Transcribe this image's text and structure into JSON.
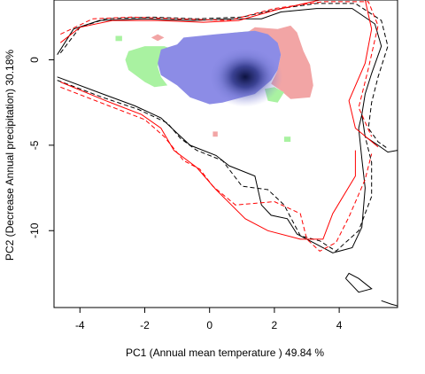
{
  "chart_data": {
    "type": "contour-density",
    "xlabel": "PC1 (Annual mean temperature ) 49.84 %",
    "ylabel": "PC2 (Decrease Annual precipitation) 30.18%",
    "xlim": [
      -4.8,
      5.8
    ],
    "ylim": [
      -14.5,
      3.5
    ],
    "x_ticks": [
      -4,
      -2,
      0,
      2,
      4
    ],
    "y_ticks": [
      0,
      -5,
      -10
    ],
    "x_tick_labels": [
      "-4",
      "-2",
      "0",
      "2",
      "4"
    ],
    "y_tick_labels": [
      "0",
      "-5",
      "-10"
    ],
    "grid": false,
    "colors": {
      "overlap": "#8c8ce6",
      "density_core": "#12184f",
      "species_a_only": "#f2a5a5",
      "species_b_only": "#a9f2a1",
      "contour_red": "#ff0000",
      "contour_black": "#000000"
    },
    "overlap_region": [
      [
        -1.6,
        -0.2
      ],
      [
        -1.5,
        0.6
      ],
      [
        -1.0,
        0.9
      ],
      [
        -0.8,
        1.3
      ],
      [
        -0.3,
        1.4
      ],
      [
        0.2,
        1.5
      ],
      [
        0.8,
        1.6
      ],
      [
        1.4,
        1.7
      ],
      [
        1.8,
        1.5
      ],
      [
        2.1,
        1.0
      ],
      [
        2.2,
        0.3
      ],
      [
        2.1,
        -0.6
      ],
      [
        1.9,
        -1.2
      ],
      [
        1.4,
        -2.0
      ],
      [
        0.4,
        -2.5
      ],
      [
        0.0,
        -2.6
      ],
      [
        -0.6,
        -2.2
      ],
      [
        -1.0,
        -1.5
      ],
      [
        -1.5,
        -0.9
      ]
    ],
    "density_core": {
      "x": 1.1,
      "y": -1.0
    },
    "species_a_only": [
      [
        [
          1.0,
          1.4
        ],
        [
          1.4,
          1.9
        ],
        [
          2.1,
          1.8
        ],
        [
          2.5,
          2.0
        ],
        [
          2.7,
          1.6
        ],
        [
          2.9,
          0.5
        ],
        [
          3.1,
          -0.3
        ],
        [
          3.2,
          -1.5
        ],
        [
          3.1,
          -2.2
        ],
        [
          2.5,
          -2.3
        ],
        [
          2.2,
          -1.8
        ],
        [
          1.9,
          -1.4
        ],
        [
          2.1,
          -0.6
        ],
        [
          2.2,
          0.3
        ],
        [
          2.0,
          1.0
        ],
        [
          1.6,
          1.5
        ]
      ],
      [
        [
          -1.8,
          1.3
        ],
        [
          -1.6,
          1.5
        ],
        [
          -1.4,
          1.3
        ],
        [
          -1.6,
          1.1
        ]
      ],
      [
        [
          0.1,
          -4.2
        ],
        [
          0.25,
          -4.2
        ],
        [
          0.25,
          -4.5
        ],
        [
          0.1,
          -4.5
        ]
      ]
    ],
    "species_b_only": [
      [
        [
          -2.5,
          0.5
        ],
        [
          -2.0,
          0.8
        ],
        [
          -1.4,
          0.8
        ],
        [
          -1.1,
          0.6
        ],
        [
          -1.5,
          0.2
        ],
        [
          -1.6,
          -0.4
        ],
        [
          -1.5,
          -1.0
        ],
        [
          -1.3,
          -1.5
        ],
        [
          -1.7,
          -1.6
        ],
        [
          -2.0,
          -1.3
        ],
        [
          -2.5,
          -0.6
        ],
        [
          -2.6,
          0.0
        ]
      ],
      [
        [
          0.1,
          1.3
        ],
        [
          0.4,
          1.5
        ],
        [
          0.8,
          1.6
        ],
        [
          1.4,
          1.7
        ],
        [
          1.7,
          1.5
        ],
        [
          1.2,
          1.3
        ],
        [
          0.5,
          1.1
        ]
      ],
      [
        [
          1.7,
          -1.7
        ],
        [
          2.0,
          -1.6
        ],
        [
          2.3,
          -1.9
        ],
        [
          2.1,
          -2.5
        ],
        [
          1.8,
          -2.4
        ]
      ],
      [
        [
          -2.9,
          1.4
        ],
        [
          -2.7,
          1.4
        ],
        [
          -2.7,
          1.1
        ],
        [
          -2.9,
          1.1
        ]
      ],
      [
        [
          2.3,
          -4.5
        ],
        [
          2.5,
          -4.5
        ],
        [
          2.5,
          -4.8
        ],
        [
          2.3,
          -4.8
        ]
      ]
    ],
    "contours": [
      {
        "color": "#000000",
        "dash": false,
        "points": [
          [
            -4.7,
            0.3
          ],
          [
            -4.2,
            1.8
          ],
          [
            -3.4,
            2.3
          ],
          [
            -2.0,
            2.4
          ],
          [
            -0.5,
            2.3
          ],
          [
            0.8,
            2.4
          ],
          [
            1.6,
            2.4
          ],
          [
            2.2,
            2.8
          ],
          [
            3.3,
            3.0
          ],
          [
            4.4,
            3.0
          ],
          [
            5.1,
            2.1
          ],
          [
            5.3,
            0.8
          ],
          [
            5.0,
            -0.8
          ],
          [
            4.8,
            -2.0
          ],
          [
            4.7,
            -3.2
          ],
          [
            4.8,
            -4.5
          ],
          [
            5.2,
            -5.0
          ],
          [
            5.5,
            -5.4
          ],
          [
            5.8,
            -5.3
          ]
        ]
      },
      {
        "color": "#000000",
        "dash": false,
        "points": [
          [
            -4.7,
            -1.0
          ],
          [
            -3.3,
            -2.0
          ],
          [
            -2.3,
            -2.7
          ],
          [
            -1.5,
            -3.4
          ],
          [
            -1.0,
            -4.3
          ],
          [
            -0.6,
            -5.0
          ],
          [
            0.2,
            -5.6
          ],
          [
            0.6,
            -6.2
          ],
          [
            1.4,
            -6.8
          ],
          [
            1.6,
            -8.5
          ],
          [
            1.9,
            -9.1
          ],
          [
            2.4,
            -9.3
          ],
          [
            2.7,
            -10.2
          ],
          [
            3.2,
            -10.7
          ],
          [
            3.8,
            -11.3
          ],
          [
            4.4,
            -11.0
          ],
          [
            4.7,
            -9.8
          ],
          [
            4.8,
            -7.5
          ],
          [
            4.7,
            -5.8
          ],
          [
            4.6,
            -4.0
          ],
          [
            4.7,
            -3.2
          ]
        ]
      },
      {
        "color": "#000000",
        "dash": true,
        "points": [
          [
            -4.6,
            0.4
          ],
          [
            -4.0,
            1.9
          ],
          [
            -3.2,
            2.4
          ],
          [
            -1.8,
            2.5
          ],
          [
            -0.4,
            2.4
          ],
          [
            1.0,
            2.5
          ],
          [
            2.2,
            3.0
          ],
          [
            3.3,
            3.3
          ],
          [
            4.5,
            3.3
          ],
          [
            5.3,
            2.3
          ],
          [
            5.5,
            0.8
          ],
          [
            5.2,
            -1.0
          ],
          [
            5.0,
            -2.5
          ],
          [
            4.9,
            -4.0
          ],
          [
            5.2,
            -4.8
          ],
          [
            5.5,
            -5.2
          ]
        ]
      },
      {
        "color": "#000000",
        "dash": true,
        "points": [
          [
            -4.7,
            -1.2
          ],
          [
            -3.3,
            -2.2
          ],
          [
            -2.2,
            -2.9
          ],
          [
            -1.3,
            -3.7
          ],
          [
            -0.9,
            -4.6
          ],
          [
            -0.4,
            -5.3
          ],
          [
            0.4,
            -5.9
          ],
          [
            1.0,
            -7.4
          ],
          [
            1.8,
            -7.6
          ],
          [
            2.3,
            -8.5
          ],
          [
            2.8,
            -10.3
          ],
          [
            3.4,
            -10.6
          ],
          [
            3.9,
            -11.2
          ],
          [
            4.6,
            -10.0
          ],
          [
            5.0,
            -8.0
          ],
          [
            5.0,
            -6.0
          ],
          [
            4.8,
            -4.5
          ]
        ]
      },
      {
        "color": "#000000",
        "dash": false,
        "points": [
          [
            4.2,
            -12.8
          ],
          [
            4.6,
            -13.6
          ],
          [
            5.0,
            -13.4
          ],
          [
            4.6,
            -12.8
          ],
          [
            4.3,
            -12.5
          ],
          [
            4.2,
            -12.8
          ]
        ]
      },
      {
        "color": "#000000",
        "dash": false,
        "points": [
          [
            5.3,
            -14.1
          ],
          [
            5.6,
            -14.3
          ],
          [
            5.8,
            -14.4
          ]
        ]
      },
      {
        "color": "#ff0000",
        "dash": false,
        "points": [
          [
            -4.6,
            1.0
          ],
          [
            -4.0,
            1.9
          ],
          [
            -3.0,
            2.3
          ],
          [
            -1.6,
            2.3
          ],
          [
            -0.2,
            2.2
          ],
          [
            0.9,
            2.3
          ],
          [
            2.0,
            2.9
          ],
          [
            3.4,
            3.5
          ],
          [
            4.8,
            3.5
          ],
          [
            5.0,
            1.8
          ],
          [
            4.8,
            -0.2
          ],
          [
            4.3,
            -2.4
          ],
          [
            4.5,
            -4.0
          ],
          [
            5.2,
            -5.1
          ]
        ]
      },
      {
        "color": "#ff0000",
        "dash": false,
        "points": [
          [
            -4.6,
            -1.3
          ],
          [
            -3.2,
            -2.4
          ],
          [
            -2.1,
            -3.2
          ],
          [
            -1.5,
            -4.0
          ],
          [
            -1.1,
            -5.3
          ],
          [
            -0.4,
            -6.3
          ],
          [
            0.2,
            -7.6
          ],
          [
            1.1,
            -9.3
          ],
          [
            1.8,
            -10.0
          ],
          [
            2.8,
            -10.5
          ],
          [
            3.5,
            -10.5
          ],
          [
            3.8,
            -9.0
          ],
          [
            4.5,
            -6.8
          ],
          [
            4.5,
            -5.3
          ]
        ]
      },
      {
        "color": "#ff0000",
        "dash": true,
        "points": [
          [
            -4.6,
            1.5
          ],
          [
            -3.6,
            2.4
          ],
          [
            -2.4,
            2.5
          ],
          [
            -1.0,
            2.4
          ],
          [
            0.6,
            2.3
          ],
          [
            2.0,
            3.0
          ],
          [
            3.5,
            3.4
          ],
          [
            4.9,
            3.4
          ],
          [
            5.2,
            2.0
          ],
          [
            4.9,
            -0.5
          ],
          [
            4.6,
            -2.8
          ],
          [
            5.0,
            -4.5
          ]
        ]
      },
      {
        "color": "#ff0000",
        "dash": true,
        "points": [
          [
            -4.6,
            -1.6
          ],
          [
            -3.1,
            -2.7
          ],
          [
            -2.0,
            -3.5
          ],
          [
            -1.4,
            -4.5
          ],
          [
            -0.8,
            -5.9
          ],
          [
            -0.3,
            -6.4
          ],
          [
            0.1,
            -7.4
          ],
          [
            0.8,
            -8.5
          ],
          [
            2.0,
            -8.3
          ],
          [
            2.8,
            -9.0
          ],
          [
            3.0,
            -10.5
          ],
          [
            3.4,
            -11.2
          ],
          [
            3.9,
            -10.7
          ],
          [
            4.3,
            -9.2
          ],
          [
            4.8,
            -7.0
          ],
          [
            5.0,
            -5.5
          ]
        ]
      }
    ]
  }
}
